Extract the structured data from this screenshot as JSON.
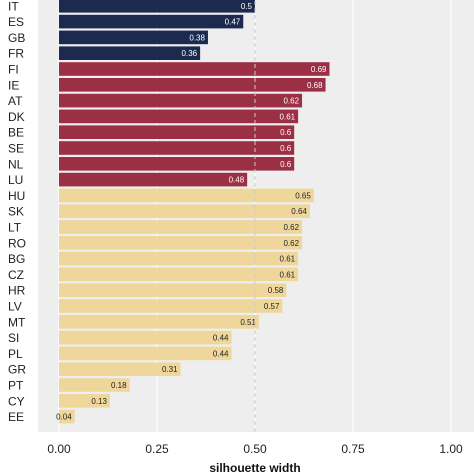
{
  "chart_data": {
    "type": "bar",
    "orientation": "horizontal",
    "xlabel": "silhouette width",
    "xlim": [
      0,
      1
    ],
    "x_ticks": [
      0.0,
      0.25,
      0.5,
      0.75,
      1.0
    ],
    "x_tick_labels": [
      "0.00",
      "0.25",
      "0.50",
      "0.75",
      "1.00"
    ],
    "reference_line": 0.5,
    "grid": "vertical",
    "background": "#eeeeee",
    "clusters": [
      {
        "color": "#1b2a4e",
        "label_color": "#ffffff",
        "bars": [
          {
            "category": "IT",
            "value": 0.5,
            "label": "0.5"
          },
          {
            "category": "ES",
            "value": 0.47,
            "label": "0.47"
          },
          {
            "category": "GB",
            "value": 0.38,
            "label": "0.38"
          },
          {
            "category": "FR",
            "value": 0.36,
            "label": "0.36"
          }
        ]
      },
      {
        "color": "#9b3045",
        "label_color": "#ffffff",
        "bars": [
          {
            "category": "FI",
            "value": 0.69,
            "label": "0.69"
          },
          {
            "category": "IE",
            "value": 0.68,
            "label": "0.68"
          },
          {
            "category": "AT",
            "value": 0.62,
            "label": "0.62"
          },
          {
            "category": "DK",
            "value": 0.61,
            "label": "0.61"
          },
          {
            "category": "BE",
            "value": 0.6,
            "label": "0.6"
          },
          {
            "category": "SE",
            "value": 0.6,
            "label": "0.6"
          },
          {
            "category": "NL",
            "value": 0.6,
            "label": "0.6"
          },
          {
            "category": "LU",
            "value": 0.48,
            "label": "0.48"
          }
        ]
      },
      {
        "color": "#efd79c",
        "label_color": "#222222",
        "bars": [
          {
            "category": "HU",
            "value": 0.65,
            "label": "0.65"
          },
          {
            "category": "SK",
            "value": 0.64,
            "label": "0.64"
          },
          {
            "category": "LT",
            "value": 0.62,
            "label": "0.62"
          },
          {
            "category": "RO",
            "value": 0.62,
            "label": "0.62"
          },
          {
            "category": "BG",
            "value": 0.61,
            "label": "0.61"
          },
          {
            "category": "CZ",
            "value": 0.61,
            "label": "0.61"
          },
          {
            "category": "HR",
            "value": 0.58,
            "label": "0.58"
          },
          {
            "category": "LV",
            "value": 0.57,
            "label": "0.57"
          },
          {
            "category": "MT",
            "value": 0.51,
            "label": "0.51"
          },
          {
            "category": "SI",
            "value": 0.44,
            "label": "0.44"
          },
          {
            "category": "PL",
            "value": 0.44,
            "label": "0.44"
          },
          {
            "category": "GR",
            "value": 0.31,
            "label": "0.31"
          },
          {
            "category": "PT",
            "value": 0.18,
            "label": "0.18"
          },
          {
            "category": "CY",
            "value": 0.13,
            "label": "0.13"
          },
          {
            "category": "EE",
            "value": 0.04,
            "label": "0.04"
          }
        ]
      }
    ]
  }
}
